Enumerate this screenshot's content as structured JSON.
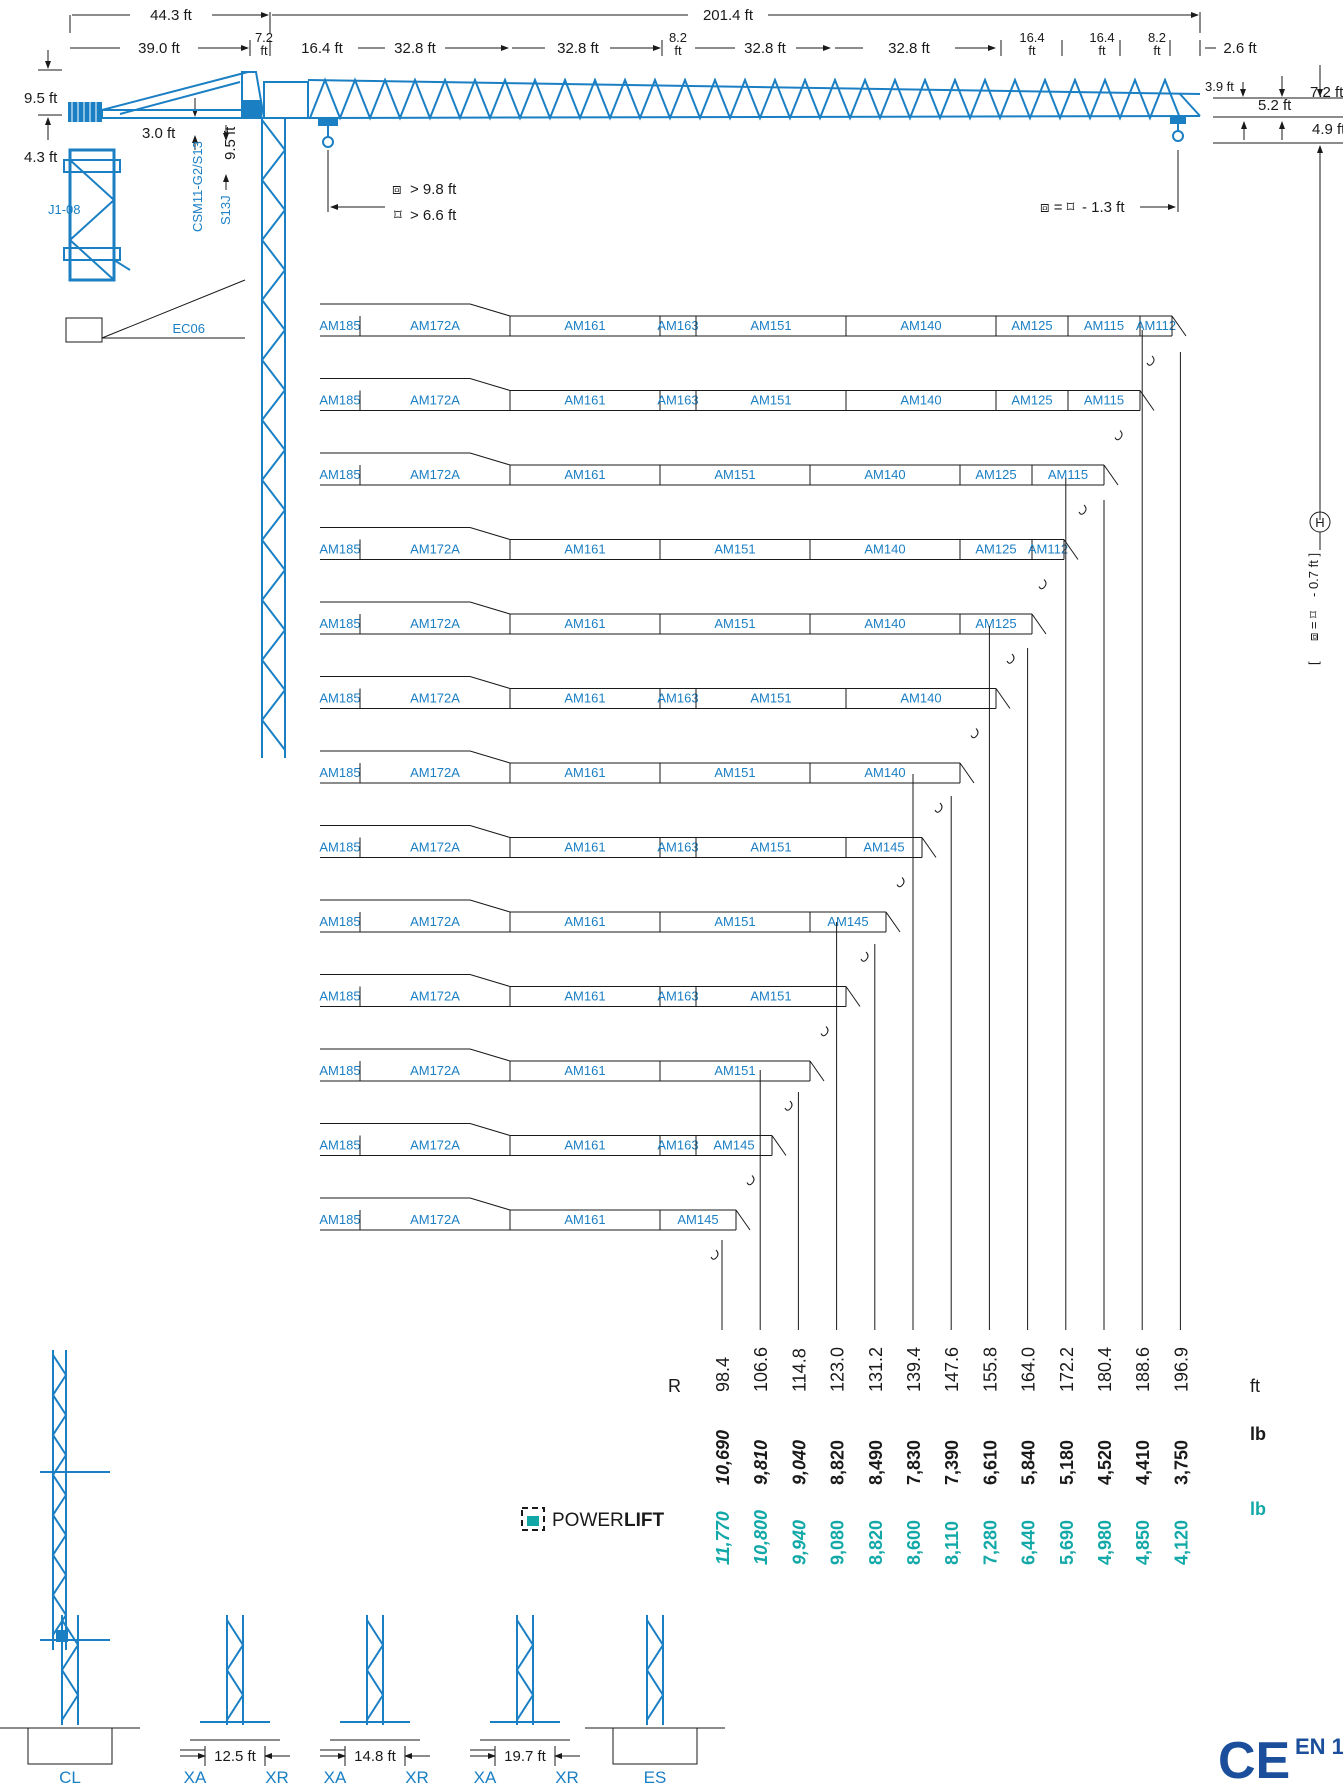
{
  "top_dims": {
    "counter_jib_total": "44.3 ft",
    "jib_total": "201.4 ft",
    "segments": [
      "39.0 ft",
      "7.2\nft",
      "16.4 ft",
      "32.8 ft",
      "32.8 ft",
      "8.2\nft",
      "32.8 ft",
      "32.8 ft",
      "16.4\nft",
      "16.4\nft",
      "8.2\nft",
      "2.6 ft"
    ],
    "left_vertical": [
      "9.5 ft",
      "4.3 ft",
      "3.0 ft",
      "9.5 ft"
    ],
    "right_vertical": [
      "3.9 ft",
      "5.2 ft",
      "7.2 ft",
      "4.9 ft"
    ]
  },
  "tower_labels": {
    "mast": "CSM11-G2/S13",
    "section": "S13J",
    "climbing": "J1-08",
    "ballast": "EC06"
  },
  "trolley_notes": {
    "double_min": "> 9.8 ft",
    "single_min": "> 6.6 ft",
    "end_note": "= ",
    "end_value": "- 1.3 ft",
    "height_note": "[ ",
    "height_value": "- 0.7 ft ]",
    "height_symbol": "H"
  },
  "jib_configs": [
    {
      "segments": [
        "AM185",
        "AM172A",
        "AM161",
        "AM163",
        "AM151",
        "AM140",
        "AM125",
        "AM115",
        "AM112"
      ],
      "radius_ft": 196.9
    },
    {
      "segments": [
        "AM185",
        "AM172A",
        "AM161",
        "AM163",
        "AM151",
        "AM140",
        "AM125",
        "AM115"
      ],
      "radius_ft": 188.6
    },
    {
      "segments": [
        "AM185",
        "AM172A",
        "AM161",
        "AM151",
        "AM140",
        "AM125",
        "AM115"
      ],
      "radius_ft": 180.4
    },
    {
      "segments": [
        "AM185",
        "AM172A",
        "AM161",
        "AM151",
        "AM140",
        "AM125",
        "AM112"
      ],
      "radius_ft": 172.2
    },
    {
      "segments": [
        "AM185",
        "AM172A",
        "AM161",
        "AM151",
        "AM140",
        "AM125"
      ],
      "radius_ft": 164.0
    },
    {
      "segments": [
        "AM185",
        "AM172A",
        "AM161",
        "AM163",
        "AM151",
        "AM140"
      ],
      "radius_ft": 155.8
    },
    {
      "segments": [
        "AM185",
        "AM172A",
        "AM161",
        "AM151",
        "AM140"
      ],
      "radius_ft": 147.6
    },
    {
      "segments": [
        "AM185",
        "AM172A",
        "AM161",
        "AM163",
        "AM151",
        "AM145"
      ],
      "radius_ft": 139.4
    },
    {
      "segments": [
        "AM185",
        "AM172A",
        "AM161",
        "AM151",
        "AM145"
      ],
      "radius_ft": 131.2
    },
    {
      "segments": [
        "AM185",
        "AM172A",
        "AM161",
        "AM163",
        "AM151"
      ],
      "radius_ft": 123.0
    },
    {
      "segments": [
        "AM185",
        "AM172A",
        "AM161",
        "AM151"
      ],
      "radius_ft": 114.8
    },
    {
      "segments": [
        "AM185",
        "AM172A",
        "AM161",
        "AM163",
        "AM145"
      ],
      "radius_ft": 106.6
    },
    {
      "segments": [
        "AM185",
        "AM172A",
        "AM161",
        "AM145"
      ],
      "radius_ft": 98.4
    }
  ],
  "load_table": {
    "radius_label": "R",
    "radius_unit": "ft",
    "load_unit": "lb",
    "powerlift_unit": "lb",
    "radius": [
      "98.4",
      "106.6",
      "114.8",
      "123.0",
      "131.2",
      "139.4",
      "147.6",
      "155.8",
      "164.0",
      "172.2",
      "180.4",
      "188.6",
      "196.9"
    ],
    "load": [
      "10,690",
      "9,810",
      "9,040",
      "8,820",
      "8,490",
      "7,830",
      "7,390",
      "6,610",
      "5,840",
      "5,180",
      "4,520",
      "4,410",
      "3,750"
    ],
    "powerlift": [
      "11,770",
      "10,800",
      "9,940",
      "9,080",
      "8,820",
      "8,600",
      "8,110",
      "7,280",
      "6,440",
      "5,690",
      "4,980",
      "4,850",
      "4,120"
    ]
  },
  "powerlift_logo": {
    "text_light": "POWER ",
    "text_bold": "LIFT"
  },
  "base_options": [
    {
      "code": "CL",
      "dim": ""
    },
    {
      "code": "XA",
      "code2": "XR",
      "dim": "12.5 ft"
    },
    {
      "code": "XA",
      "code2": "XR",
      "dim": "14.8 ft"
    },
    {
      "code": "XA",
      "code2": "XR",
      "dim": "19.7 ft"
    },
    {
      "code": "ES",
      "dim": ""
    }
  ],
  "cert": {
    "mark": "CE",
    "standard": "EN 1"
  },
  "colors": {
    "crane_blue": "#1b7fc4",
    "powerlift_teal": "#13a8a8",
    "ce_blue": "#1b4f9c"
  }
}
